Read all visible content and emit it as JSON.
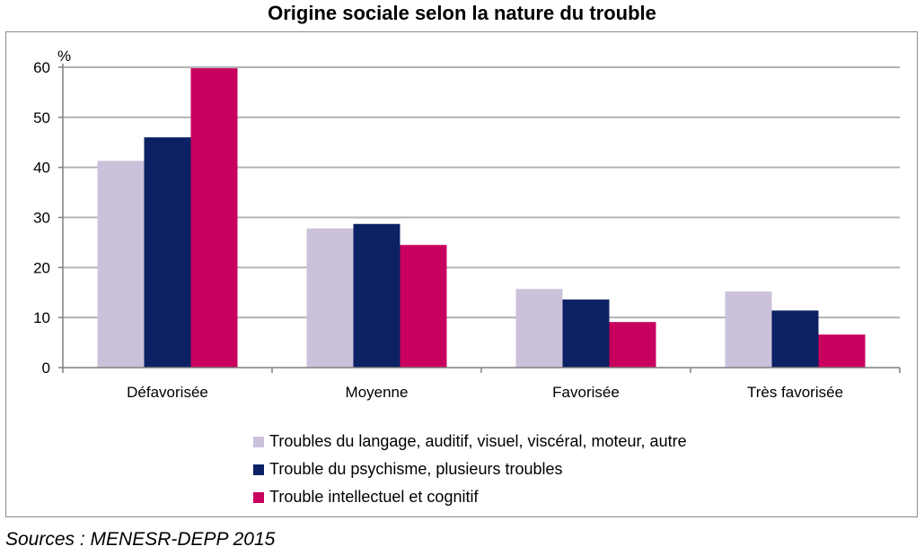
{
  "title": "Origine sociale selon la nature du trouble",
  "source": "Sources : MENESR-DEPP 2015",
  "chart_data": {
    "type": "bar",
    "title": "Origine sociale selon la nature du trouble",
    "ylabel": "%",
    "xlabel": "",
    "ylim": [
      0,
      60
    ],
    "yticks": [
      0,
      10,
      20,
      30,
      40,
      50,
      60
    ],
    "grid": true,
    "legend_position": "bottom",
    "categories": [
      "Défavorisée",
      "Moyenne",
      "Favorisée",
      "Très favorisée"
    ],
    "series": [
      {
        "name": "Troubles du langage, auditif, visuel, viscéral, moteur, autre",
        "color": "#cbc1db",
        "values": [
          41.3,
          27.8,
          15.7,
          15.2
        ]
      },
      {
        "name": "Trouble du psychisme, plusieurs troubles",
        "color": "#0b2163",
        "values": [
          46.0,
          28.7,
          13.6,
          11.4
        ]
      },
      {
        "name": "Trouble intellectuel et cognitif",
        "color": "#c8005e",
        "values": [
          59.8,
          24.5,
          9.1,
          6.6
        ]
      }
    ]
  }
}
